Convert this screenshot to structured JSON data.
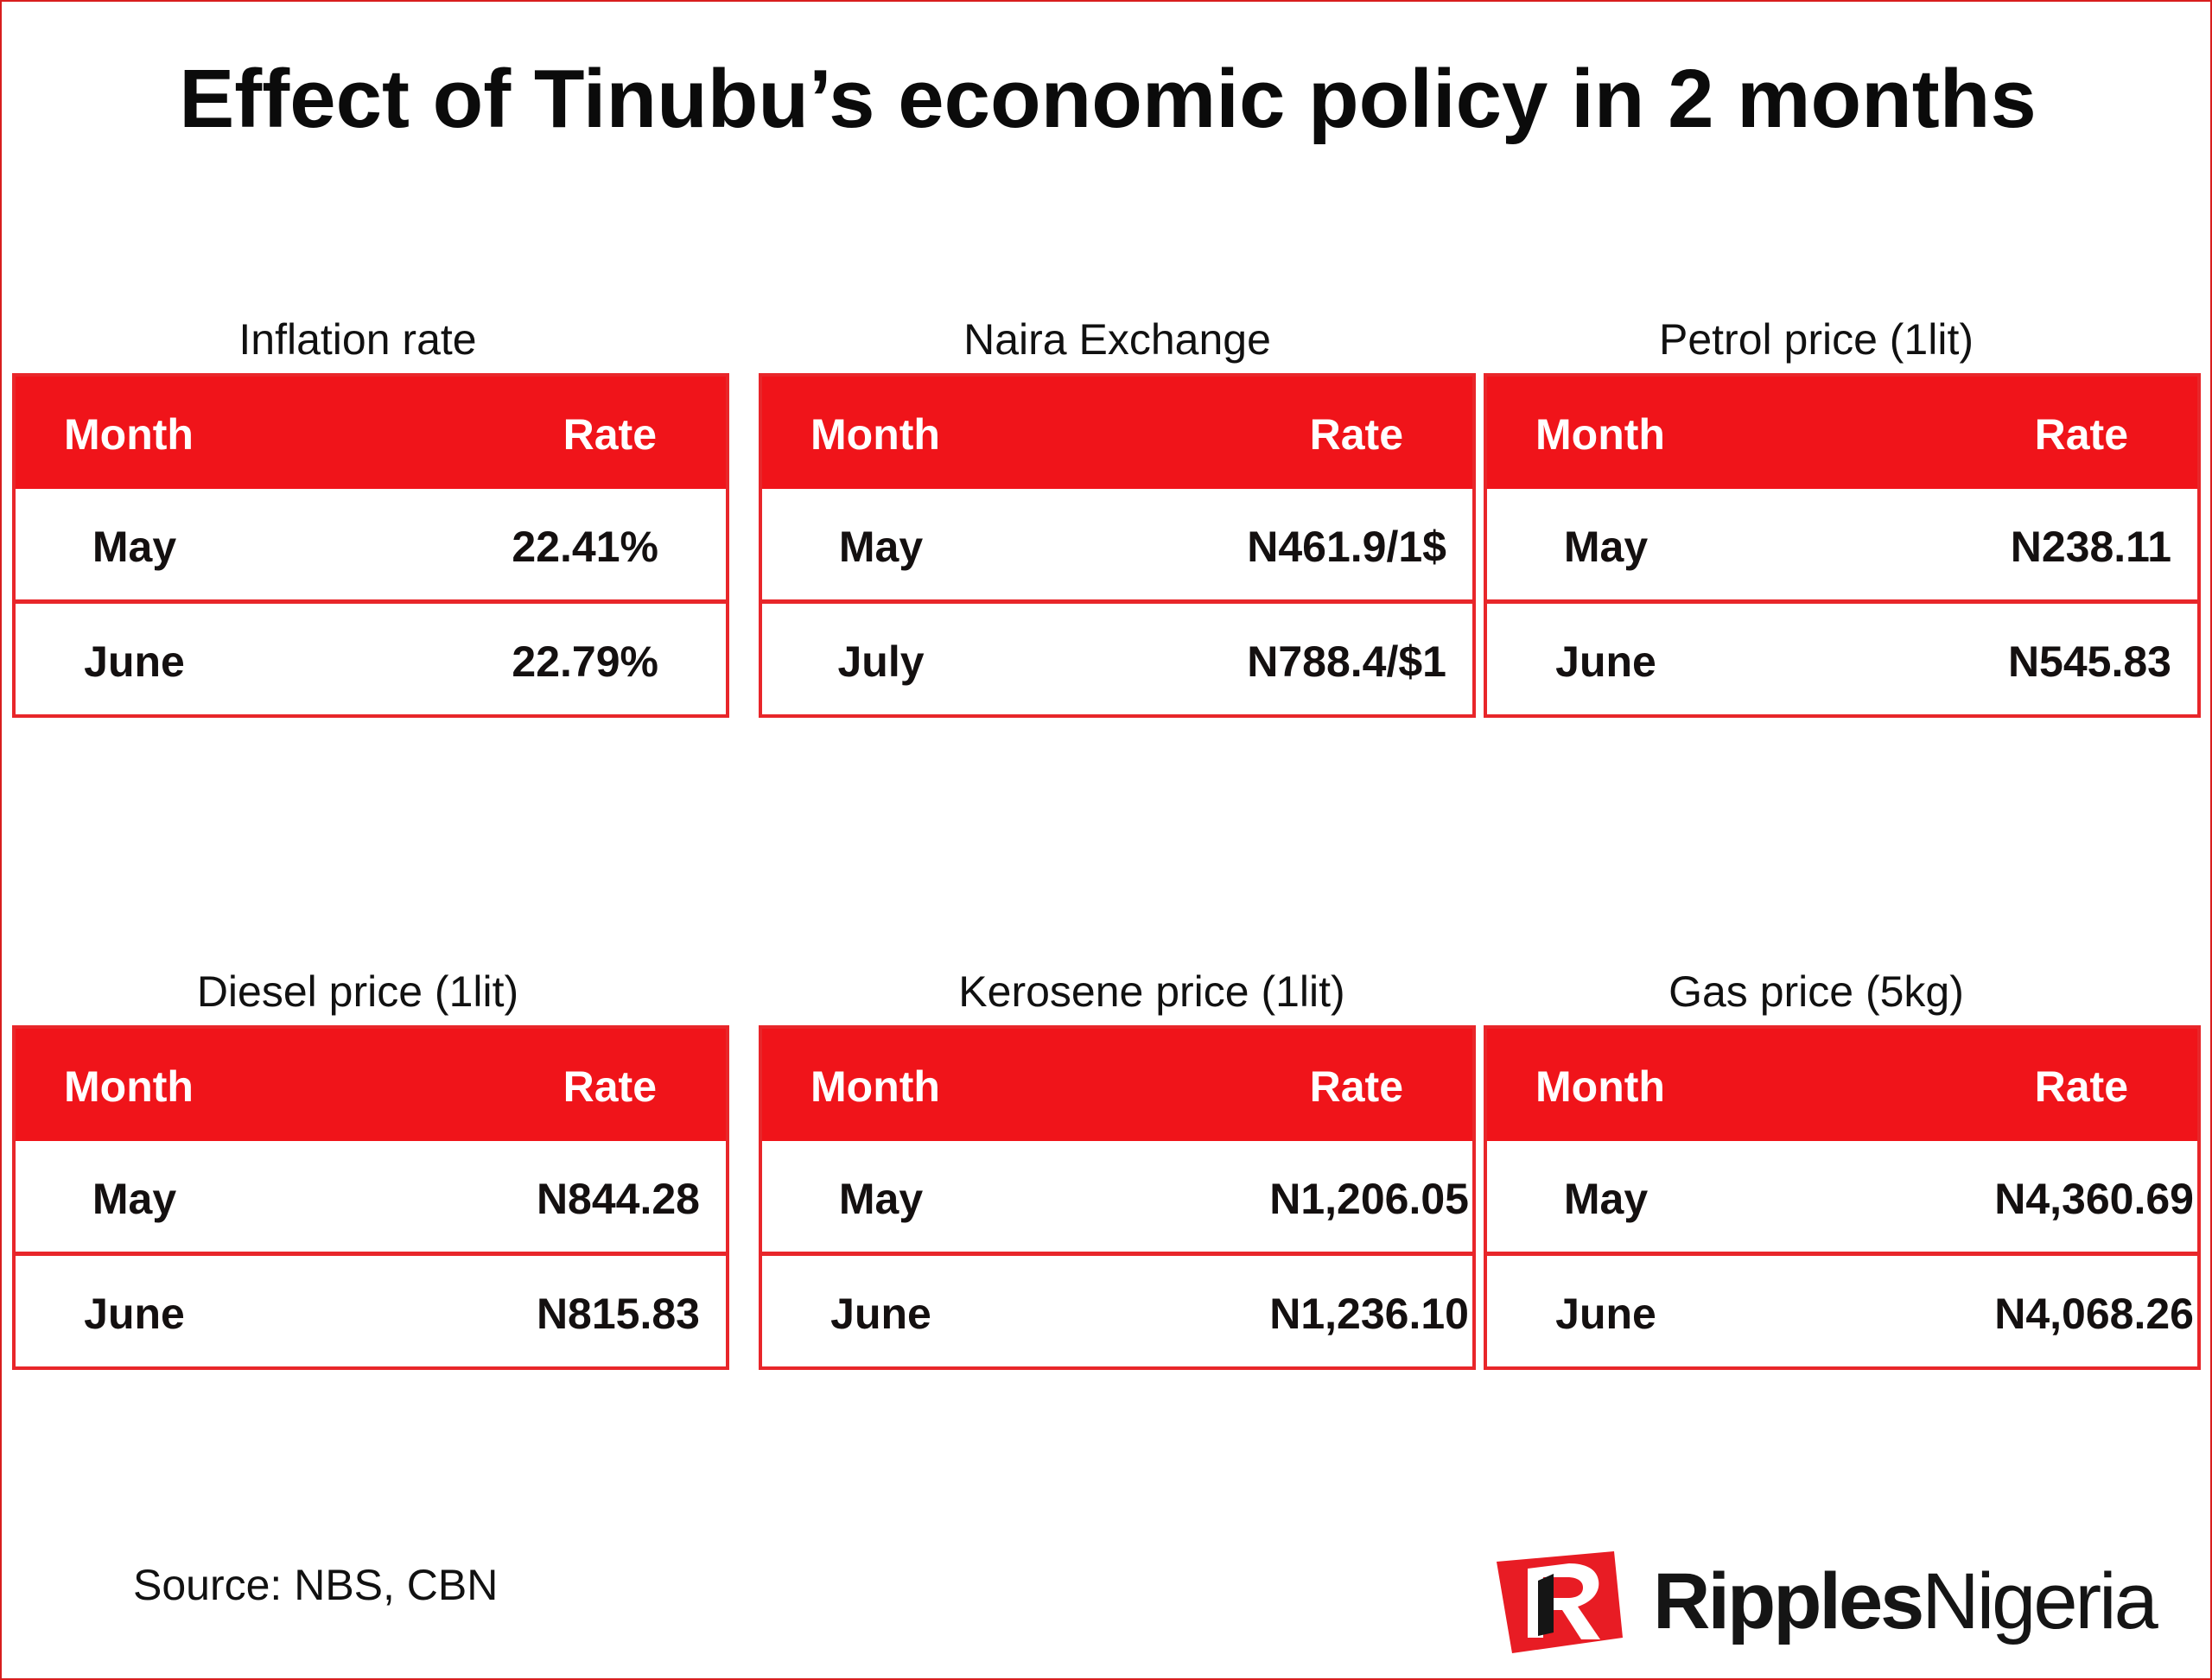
{
  "title": "Effect of Tinubu’s economic policy in 2 months",
  "colors": {
    "header_red": "#f0141a",
    "border_red": "#e8262a",
    "logo_red": "#e81c24"
  },
  "chart_data": [
    {
      "type": "table",
      "title": "Inflation rate",
      "columns": [
        "Month",
        "Rate"
      ],
      "rows": [
        {
          "month": "May",
          "rate": "22.41%"
        },
        {
          "month": "June",
          "rate": "22.79%"
        }
      ]
    },
    {
      "type": "table",
      "title": "Naira Exchange",
      "columns": [
        "Month",
        "Rate"
      ],
      "rows": [
        {
          "month": "May",
          "rate": "N461.9/1$"
        },
        {
          "month": "July",
          "rate": "N788.4/$1"
        }
      ]
    },
    {
      "type": "table",
      "title": "Petrol price (1lit)",
      "columns": [
        "Month",
        "Rate"
      ],
      "rows": [
        {
          "month": "May",
          "rate": "N238.11"
        },
        {
          "month": "June",
          "rate": "N545.83"
        }
      ]
    },
    {
      "type": "table",
      "title": "Diesel price (1lit)",
      "columns": [
        "Month",
        "Rate"
      ],
      "rows": [
        {
          "month": "May",
          "rate": "N844.28"
        },
        {
          "month": "June",
          "rate": "N815.83"
        }
      ]
    },
    {
      "type": "table",
      "title": "Kerosene price (1lit)",
      "columns": [
        "Month",
        "Rate"
      ],
      "rows": [
        {
          "month": "May",
          "rate": "N1,206.05"
        },
        {
          "month": "June",
          "rate": "N1,236.10"
        }
      ]
    },
    {
      "type": "table",
      "title": "Gas price (5kg)",
      "columns": [
        "Month",
        "Rate"
      ],
      "rows": [
        {
          "month": "May",
          "rate": "N4,360.69"
        },
        {
          "month": "June",
          "rate": "N4,068.26"
        }
      ]
    }
  ],
  "source": "Source: NBS, CBN",
  "logo": {
    "part1": "Ripples",
    "part2": "Nigeria"
  }
}
